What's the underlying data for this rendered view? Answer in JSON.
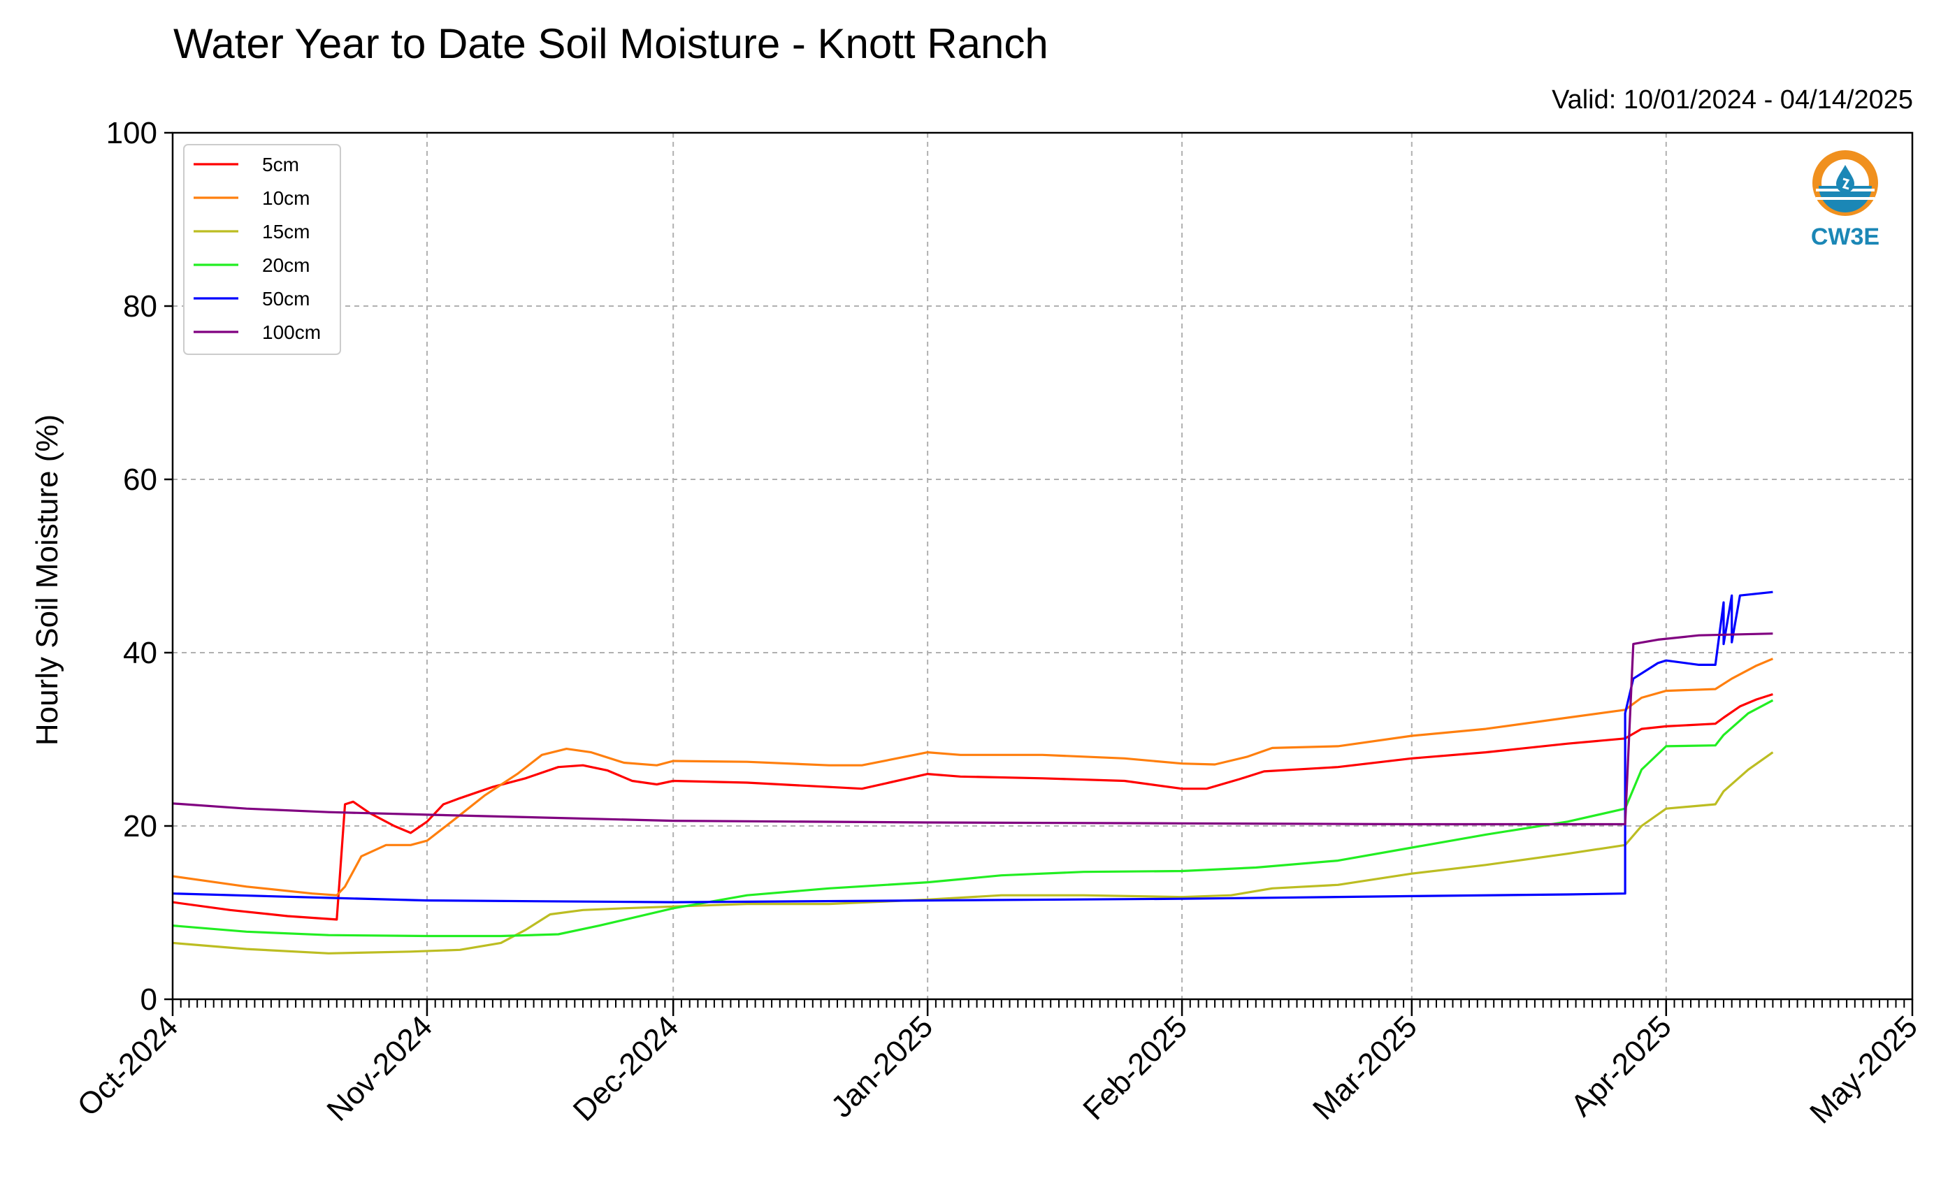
{
  "chart_data": {
    "type": "line",
    "title": "Water Year to Date Soil Moisture - Knott Ranch",
    "subtitle": "Valid: 10/01/2024 - 04/14/2025",
    "xlabel": "",
    "ylabel": "Hourly Soil Moisture (%)",
    "xlim": [
      "2024-10-01",
      "2025-05-01"
    ],
    "ylim": [
      0,
      100
    ],
    "y_ticks": [
      0,
      20,
      40,
      60,
      80,
      100
    ],
    "x_ticks": [
      {
        "date": "2024-10-01",
        "label": "Oct-2024"
      },
      {
        "date": "2024-11-01",
        "label": "Nov-2024"
      },
      {
        "date": "2024-12-01",
        "label": "Dec-2024"
      },
      {
        "date": "2025-01-01",
        "label": "Jan-2025"
      },
      {
        "date": "2025-02-01",
        "label": "Feb-2025"
      },
      {
        "date": "2025-03-01",
        "label": "Mar-2025"
      },
      {
        "date": "2025-04-01",
        "label": "Apr-2025"
      },
      {
        "date": "2025-05-01",
        "label": "May-2025"
      }
    ],
    "grid": true,
    "legend_position": "top-left",
    "series": [
      {
        "name": "5cm",
        "color": "#ff0000",
        "points": [
          [
            "2024-10-01",
            11.2
          ],
          [
            "2024-10-08",
            10.3
          ],
          [
            "2024-10-15",
            9.6
          ],
          [
            "2024-10-21",
            9.2
          ],
          [
            "2024-10-22",
            22.5
          ],
          [
            "2024-10-23",
            22.8
          ],
          [
            "2024-10-25",
            21.5
          ],
          [
            "2024-10-28",
            20.0
          ],
          [
            "2024-10-30",
            19.2
          ],
          [
            "2024-11-01",
            20.5
          ],
          [
            "2024-11-03",
            22.5
          ],
          [
            "2024-11-05",
            23.2
          ],
          [
            "2024-11-09",
            24.5
          ],
          [
            "2024-11-13",
            25.5
          ],
          [
            "2024-11-17",
            26.8
          ],
          [
            "2024-11-20",
            27.0
          ],
          [
            "2024-11-23",
            26.4
          ],
          [
            "2024-11-26",
            25.2
          ],
          [
            "2024-11-29",
            24.8
          ],
          [
            "2024-12-01",
            25.2
          ],
          [
            "2024-12-10",
            25.0
          ],
          [
            "2024-12-20",
            24.5
          ],
          [
            "2024-12-24",
            24.3
          ],
          [
            "2025-01-01",
            26.0
          ],
          [
            "2025-01-05",
            25.7
          ],
          [
            "2025-01-15",
            25.5
          ],
          [
            "2025-01-25",
            25.2
          ],
          [
            "2025-02-01",
            24.3
          ],
          [
            "2025-02-04",
            24.3
          ],
          [
            "2025-02-08",
            25.4
          ],
          [
            "2025-02-11",
            26.3
          ],
          [
            "2025-02-20",
            26.8
          ],
          [
            "2025-03-01",
            27.8
          ],
          [
            "2025-03-10",
            28.5
          ],
          [
            "2025-03-20",
            29.5
          ],
          [
            "2025-03-27",
            30.1
          ],
          [
            "2025-03-29",
            31.2
          ],
          [
            "2025-04-01",
            31.5
          ],
          [
            "2025-04-07",
            31.8
          ],
          [
            "2025-04-08",
            32.5
          ],
          [
            "2025-04-10",
            33.8
          ],
          [
            "2025-04-12",
            34.6
          ],
          [
            "2025-04-14",
            35.2
          ]
        ]
      },
      {
        "name": "10cm",
        "color": "#ff7f0e",
        "points": [
          [
            "2024-10-01",
            14.2
          ],
          [
            "2024-10-10",
            13.0
          ],
          [
            "2024-10-18",
            12.2
          ],
          [
            "2024-10-21",
            12.0
          ],
          [
            "2024-10-22",
            13.0
          ],
          [
            "2024-10-24",
            16.5
          ],
          [
            "2024-10-27",
            17.8
          ],
          [
            "2024-10-30",
            17.8
          ],
          [
            "2024-11-01",
            18.3
          ],
          [
            "2024-11-04",
            20.5
          ],
          [
            "2024-11-08",
            23.5
          ],
          [
            "2024-11-12",
            26.0
          ],
          [
            "2024-11-15",
            28.2
          ],
          [
            "2024-11-18",
            28.9
          ],
          [
            "2024-11-21",
            28.5
          ],
          [
            "2024-11-25",
            27.3
          ],
          [
            "2024-11-29",
            27.0
          ],
          [
            "2024-12-01",
            27.5
          ],
          [
            "2024-12-10",
            27.4
          ],
          [
            "2024-12-20",
            27.0
          ],
          [
            "2024-12-24",
            27.0
          ],
          [
            "2025-01-01",
            28.5
          ],
          [
            "2025-01-05",
            28.2
          ],
          [
            "2025-01-15",
            28.2
          ],
          [
            "2025-01-25",
            27.8
          ],
          [
            "2025-02-01",
            27.2
          ],
          [
            "2025-02-05",
            27.1
          ],
          [
            "2025-02-09",
            28.0
          ],
          [
            "2025-02-12",
            29.0
          ],
          [
            "2025-02-20",
            29.2
          ],
          [
            "2025-03-01",
            30.4
          ],
          [
            "2025-03-10",
            31.2
          ],
          [
            "2025-03-20",
            32.5
          ],
          [
            "2025-03-27",
            33.4
          ],
          [
            "2025-03-29",
            34.8
          ],
          [
            "2025-04-01",
            35.6
          ],
          [
            "2025-04-07",
            35.8
          ],
          [
            "2025-04-09",
            37.0
          ],
          [
            "2025-04-12",
            38.5
          ],
          [
            "2025-04-14",
            39.3
          ]
        ]
      },
      {
        "name": "15cm",
        "color": "#bcbd22",
        "points": [
          [
            "2024-10-01",
            6.5
          ],
          [
            "2024-10-10",
            5.8
          ],
          [
            "2024-10-20",
            5.3
          ],
          [
            "2024-10-30",
            5.5
          ],
          [
            "2024-11-05",
            5.7
          ],
          [
            "2024-11-10",
            6.5
          ],
          [
            "2024-11-13",
            8.0
          ],
          [
            "2024-11-16",
            9.8
          ],
          [
            "2024-11-20",
            10.3
          ],
          [
            "2024-11-25",
            10.5
          ],
          [
            "2024-12-01",
            10.7
          ],
          [
            "2024-12-10",
            11.0
          ],
          [
            "2024-12-20",
            11.0
          ],
          [
            "2025-01-01",
            11.5
          ],
          [
            "2025-01-10",
            12.0
          ],
          [
            "2025-01-20",
            12.0
          ],
          [
            "2025-02-01",
            11.8
          ],
          [
            "2025-02-07",
            12.0
          ],
          [
            "2025-02-12",
            12.8
          ],
          [
            "2025-02-20",
            13.2
          ],
          [
            "2025-03-01",
            14.5
          ],
          [
            "2025-03-10",
            15.5
          ],
          [
            "2025-03-20",
            16.8
          ],
          [
            "2025-03-27",
            17.8
          ],
          [
            "2025-03-29",
            20.0
          ],
          [
            "2025-04-01",
            22.0
          ],
          [
            "2025-04-07",
            22.5
          ],
          [
            "2025-04-08",
            24.0
          ],
          [
            "2025-04-11",
            26.5
          ],
          [
            "2025-04-14",
            28.5
          ]
        ]
      },
      {
        "name": "20cm",
        "color": "#22ee22",
        "points": [
          [
            "2024-10-01",
            8.5
          ],
          [
            "2024-10-10",
            7.8
          ],
          [
            "2024-10-20",
            7.4
          ],
          [
            "2024-11-01",
            7.3
          ],
          [
            "2024-11-10",
            7.3
          ],
          [
            "2024-11-17",
            7.5
          ],
          [
            "2024-11-22",
            8.5
          ],
          [
            "2024-12-01",
            10.5
          ],
          [
            "2024-12-10",
            12.0
          ],
          [
            "2024-12-20",
            12.8
          ],
          [
            "2025-01-01",
            13.5
          ],
          [
            "2025-01-10",
            14.3
          ],
          [
            "2025-01-20",
            14.7
          ],
          [
            "2025-02-01",
            14.8
          ],
          [
            "2025-02-10",
            15.2
          ],
          [
            "2025-02-20",
            16.0
          ],
          [
            "2025-03-01",
            17.5
          ],
          [
            "2025-03-10",
            19.0
          ],
          [
            "2025-03-20",
            20.5
          ],
          [
            "2025-03-27",
            22.0
          ],
          [
            "2025-03-29",
            26.5
          ],
          [
            "2025-04-01",
            29.2
          ],
          [
            "2025-04-07",
            29.3
          ],
          [
            "2025-04-08",
            30.5
          ],
          [
            "2025-04-11",
            33.0
          ],
          [
            "2025-04-14",
            34.5
          ]
        ]
      },
      {
        "name": "50cm",
        "color": "#0000ff",
        "points": [
          [
            "2024-10-01",
            12.2
          ],
          [
            "2024-10-20",
            11.7
          ],
          [
            "2024-11-01",
            11.4
          ],
          [
            "2024-12-01",
            11.2
          ],
          [
            "2025-01-01",
            11.4
          ],
          [
            "2025-02-01",
            11.6
          ],
          [
            "2025-03-01",
            11.9
          ],
          [
            "2025-03-20",
            12.1
          ],
          [
            "2025-03-27",
            12.2
          ],
          [
            "2025-03-27",
            33.0
          ],
          [
            "2025-03-28",
            37.0
          ],
          [
            "2025-03-31",
            38.8
          ],
          [
            "2025-04-01",
            39.1
          ],
          [
            "2025-04-05",
            38.6
          ],
          [
            "2025-04-07",
            38.6
          ],
          [
            "2025-04-08",
            45.8
          ],
          [
            "2025-04-08",
            41.0
          ],
          [
            "2025-04-09",
            46.6
          ],
          [
            "2025-04-09",
            41.2
          ],
          [
            "2025-04-10",
            46.6
          ],
          [
            "2025-04-12",
            46.8
          ],
          [
            "2025-04-14",
            47.0
          ]
        ]
      },
      {
        "name": "100cm",
        "color": "#800080",
        "points": [
          [
            "2024-10-01",
            22.6
          ],
          [
            "2024-10-10",
            22.0
          ],
          [
            "2024-10-20",
            21.6
          ],
          [
            "2024-11-01",
            21.3
          ],
          [
            "2024-12-01",
            20.6
          ],
          [
            "2025-01-01",
            20.4
          ],
          [
            "2025-02-01",
            20.3
          ],
          [
            "2025-03-01",
            20.2
          ],
          [
            "2025-03-27",
            20.2
          ],
          [
            "2025-03-28",
            41.0
          ],
          [
            "2025-03-31",
            41.5
          ],
          [
            "2025-04-05",
            42.0
          ],
          [
            "2025-04-14",
            42.2
          ]
        ]
      }
    ]
  },
  "logo": {
    "text": "CW3E",
    "ring_color": "#f0901e",
    "water_color": "#1b87b6"
  }
}
